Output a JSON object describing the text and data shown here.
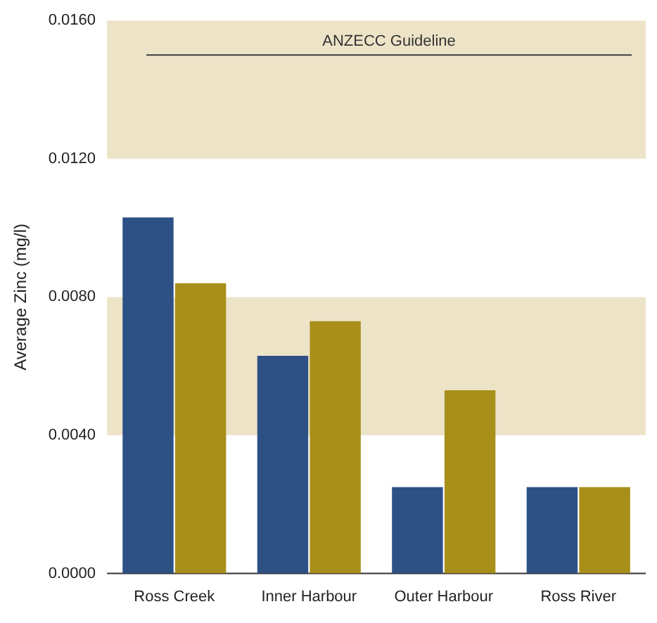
{
  "chart_data": {
    "type": "bar",
    "ylabel": "Average Zinc (mg/l)",
    "categories": [
      "Ross Creek",
      "Inner Harbour",
      "Outer Harbour",
      "Ross River"
    ],
    "series": [
      {
        "color": "#2d5185",
        "values": [
          0.0103,
          0.0063,
          0.0025,
          0.0025
        ]
      },
      {
        "color": "#a88f1a",
        "values": [
          0.0084,
          0.0073,
          0.0053,
          0.0025
        ]
      }
    ],
    "ylim": [
      0,
      0.016
    ],
    "yticks": [
      {
        "value": 0,
        "label": "0.0000"
      },
      {
        "value": 0.004,
        "label": "0.0040"
      },
      {
        "value": 0.008,
        "label": "0.0080"
      },
      {
        "value": 0.012,
        "label": "0.0120"
      },
      {
        "value": 0.016,
        "label": "0.0160"
      }
    ],
    "ref_lines": [
      {
        "axis": "y",
        "value": 0.015,
        "label": "ANZECC Guideline",
        "color": "#3a3a3a"
      }
    ],
    "bands": [
      {
        "axis": "y",
        "from": 0.004,
        "to": 0.008,
        "color": "#ede4c8"
      },
      {
        "axis": "y",
        "from": 0.012,
        "to": 0.016,
        "color": "#ede4c8"
      }
    ],
    "grid": false,
    "legend": false
  }
}
